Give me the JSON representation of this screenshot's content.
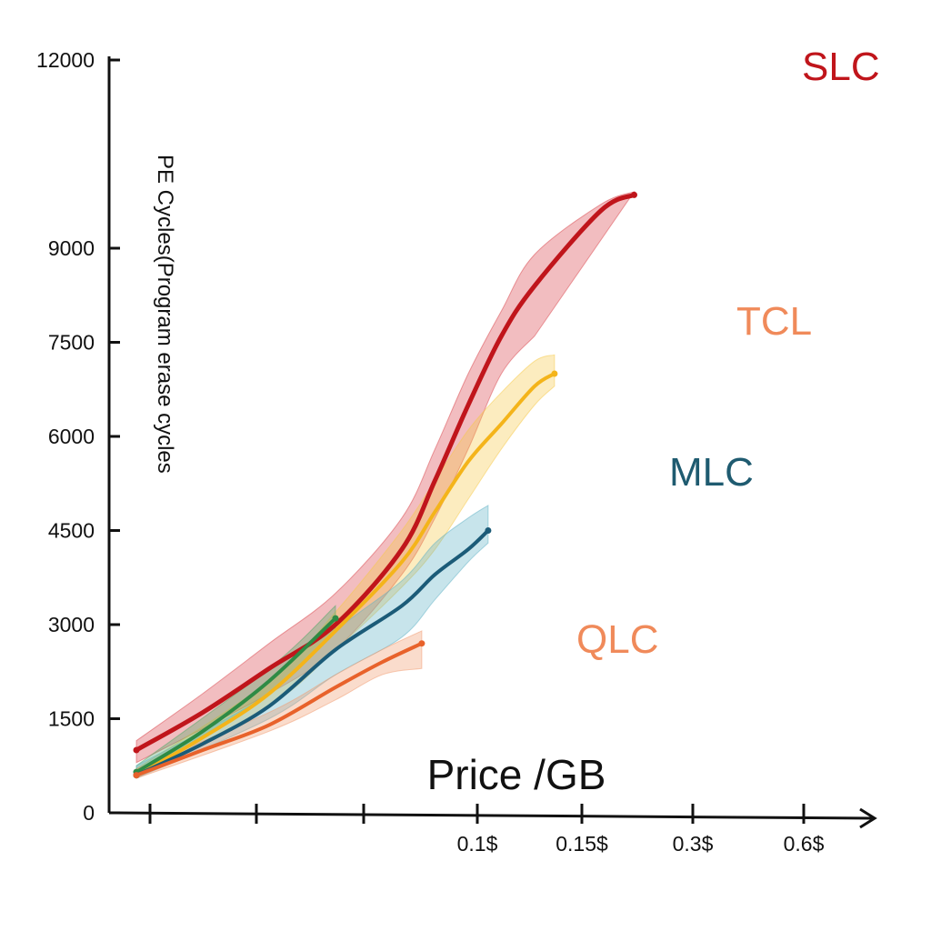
{
  "chart_data": {
    "type": "line",
    "xlabel": "Price /GB",
    "ylabel": "PE Cycles(Program erase cycles",
    "ylim": [
      0,
      12000
    ],
    "yticks": [
      0,
      1500,
      3000,
      4500,
      6000,
      7500,
      9000,
      12000
    ],
    "ytick_labels": [
      "0",
      "1500",
      "3000",
      "4500",
      "6000",
      "7500",
      "9000",
      "12000"
    ],
    "xtick_labels": [
      "",
      "",
      "",
      "0.1$",
      "0.15$",
      "0.3$",
      "0.6$"
    ],
    "grid": false,
    "series": [
      {
        "name": "SLC",
        "color": "#c0151b",
        "band_color": "#d9434a",
        "points": [
          [
            0.0,
            1000
          ],
          [
            0.1,
            1600
          ],
          [
            0.2,
            2300
          ],
          [
            0.3,
            3000
          ],
          [
            0.4,
            4200
          ],
          [
            0.45,
            5300
          ],
          [
            0.5,
            6500
          ],
          [
            0.55,
            7600
          ],
          [
            0.6,
            8400
          ],
          [
            0.7,
            9600
          ],
          [
            0.75,
            9850
          ]
        ],
        "band_low": [
          [
            0.0,
            800
          ],
          [
            0.2,
            1900
          ],
          [
            0.3,
            2600
          ],
          [
            0.4,
            3800
          ],
          [
            0.45,
            4700
          ],
          [
            0.5,
            5800
          ],
          [
            0.55,
            7000
          ],
          [
            0.6,
            7600
          ]
        ],
        "band_high": [
          [
            0.0,
            1150
          ],
          [
            0.1,
            1900
          ],
          [
            0.2,
            2700
          ],
          [
            0.3,
            3500
          ],
          [
            0.4,
            4700
          ],
          [
            0.45,
            5800
          ],
          [
            0.5,
            7000
          ],
          [
            0.55,
            8000
          ],
          [
            0.6,
            8900
          ],
          [
            0.7,
            9700
          ],
          [
            0.75,
            9900
          ]
        ]
      },
      {
        "name": "TCL",
        "color": "#f4b41a",
        "band_color": "#f7c948",
        "points": [
          [
            0.0,
            600
          ],
          [
            0.1,
            1200
          ],
          [
            0.2,
            1900
          ],
          [
            0.3,
            2900
          ],
          [
            0.4,
            4000
          ],
          [
            0.45,
            4800
          ],
          [
            0.5,
            5600
          ],
          [
            0.55,
            6200
          ],
          [
            0.6,
            6800
          ],
          [
            0.63,
            7000
          ]
        ],
        "band_low": [
          [
            0.0,
            550
          ],
          [
            0.2,
            1700
          ],
          [
            0.3,
            2600
          ],
          [
            0.4,
            3600
          ],
          [
            0.45,
            4200
          ],
          [
            0.5,
            5000
          ],
          [
            0.55,
            5800
          ],
          [
            0.6,
            6500
          ],
          [
            0.63,
            6800
          ]
        ],
        "band_high": [
          [
            0.0,
            700
          ],
          [
            0.2,
            2100
          ],
          [
            0.3,
            3200
          ],
          [
            0.4,
            4500
          ],
          [
            0.45,
            5300
          ],
          [
            0.5,
            6100
          ],
          [
            0.55,
            6700
          ],
          [
            0.6,
            7200
          ],
          [
            0.63,
            7300
          ]
        ]
      },
      {
        "name": "MLC",
        "color": "#1b5b78",
        "band_color": "#5fb1c6",
        "points": [
          [
            0.0,
            600
          ],
          [
            0.1,
            1100
          ],
          [
            0.2,
            1700
          ],
          [
            0.3,
            2600
          ],
          [
            0.4,
            3300
          ],
          [
            0.45,
            3800
          ],
          [
            0.5,
            4200
          ],
          [
            0.53,
            4500
          ]
        ],
        "band_low": [
          [
            0.0,
            550
          ],
          [
            0.2,
            1500
          ],
          [
            0.3,
            2200
          ],
          [
            0.4,
            2800
          ],
          [
            0.45,
            3400
          ],
          [
            0.5,
            4000
          ],
          [
            0.53,
            4300
          ]
        ],
        "band_high": [
          [
            0.0,
            750
          ],
          [
            0.2,
            1900
          ],
          [
            0.3,
            2900
          ],
          [
            0.4,
            3700
          ],
          [
            0.45,
            4300
          ],
          [
            0.5,
            4700
          ],
          [
            0.53,
            4900
          ]
        ]
      },
      {
        "name": "QLC",
        "color": "#e8622b",
        "band_color": "#f19a6d",
        "points": [
          [
            0.0,
            600
          ],
          [
            0.1,
            1000
          ],
          [
            0.2,
            1400
          ],
          [
            0.3,
            2000
          ],
          [
            0.37,
            2400
          ],
          [
            0.43,
            2700
          ]
        ],
        "band_low": [
          [
            0.0,
            550
          ],
          [
            0.2,
            1300
          ],
          [
            0.3,
            1800
          ],
          [
            0.37,
            2200
          ],
          [
            0.43,
            2300
          ]
        ],
        "band_high": [
          [
            0.0,
            700
          ],
          [
            0.2,
            1600
          ],
          [
            0.3,
            2200
          ],
          [
            0.37,
            2600
          ],
          [
            0.43,
            2900
          ]
        ]
      },
      {
        "name": "",
        "color": "#2e8b45",
        "band_color": "#4ea865",
        "points": [
          [
            0.0,
            650
          ],
          [
            0.1,
            1300
          ],
          [
            0.2,
            2100
          ],
          [
            0.3,
            3100
          ]
        ],
        "band_low": [
          [
            0.0,
            600
          ],
          [
            0.2,
            1900
          ],
          [
            0.3,
            2900
          ]
        ],
        "band_high": [
          [
            0.0,
            750
          ],
          [
            0.2,
            2300
          ],
          [
            0.3,
            3300
          ]
        ]
      }
    ]
  },
  "labels": {
    "slc": "SLC",
    "tcl": "TCL",
    "mlc": "MLC",
    "qlc": "QLC"
  },
  "colors": {
    "axis": "#111111",
    "slc_label": "#c0151b",
    "tcl_label": "#f08a5a",
    "mlc_label": "#1f5b70",
    "qlc_label": "#f08a5a"
  }
}
